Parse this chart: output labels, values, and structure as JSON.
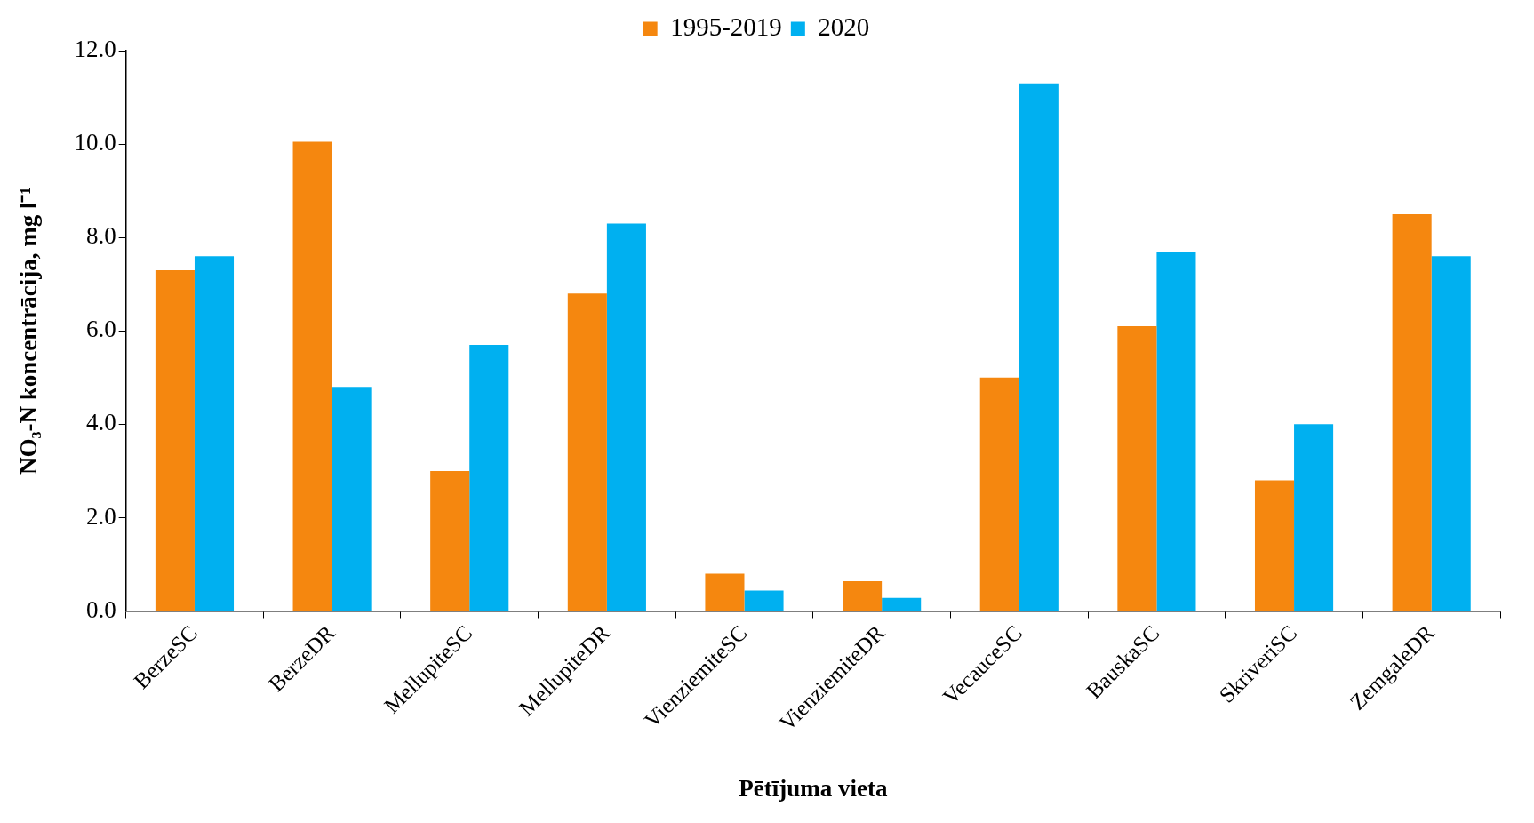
{
  "chart_data": {
    "type": "bar",
    "xlabel": "Pētījuma vieta",
    "ylabel": "NO₃-N koncentrācija, mg l⁻¹",
    "categories": [
      "BerzeSC",
      "BerzeDR",
      "MellupiteSC",
      "MellupiteDR",
      "VienziemiteSC",
      "VienziemiteDR",
      "VecauceSC",
      "BauskaSC",
      "SkriveriSC",
      "ZemgaleDR"
    ],
    "series": [
      {
        "name": "1995-2019",
        "color": "#f5870f",
        "values": [
          7.3,
          10.05,
          3.0,
          6.8,
          0.8,
          0.64,
          5.0,
          6.1,
          2.8,
          8.5
        ]
      },
      {
        "name": "2020",
        "color": "#00b0f0",
        "values": [
          7.6,
          4.8,
          5.7,
          8.3,
          0.44,
          0.28,
          11.3,
          7.7,
          4.0,
          7.6
        ]
      }
    ],
    "ylim": [
      0,
      12
    ],
    "yticks": [
      {
        "value": 0,
        "label": "0.0"
      },
      {
        "value": 2,
        "label": "2.0"
      },
      {
        "value": 4,
        "label": "4.0"
      },
      {
        "value": 6,
        "label": "6.0"
      },
      {
        "value": 8,
        "label": "8.0"
      },
      {
        "value": 10,
        "label": "10.0"
      },
      {
        "value": 12,
        "label": "12.0"
      }
    ],
    "grid": false,
    "legend": "top"
  }
}
